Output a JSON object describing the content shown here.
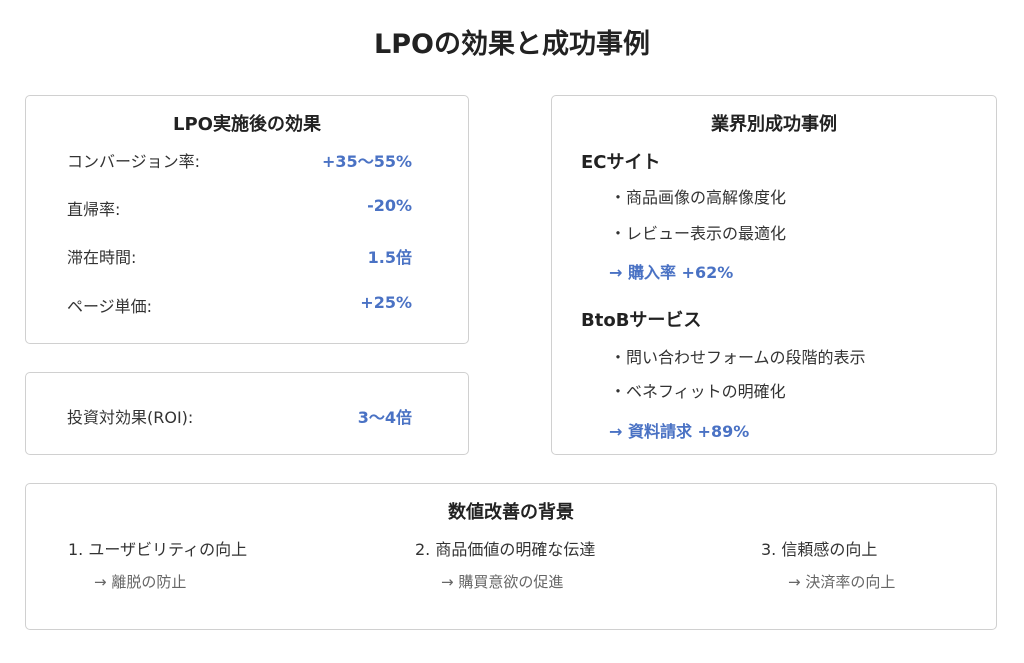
{
  "page": {
    "title": "LPOの効果と成功事例"
  },
  "effects": {
    "title": "LPO実施後の効果",
    "rows": [
      {
        "label": "コンバージョン率:",
        "value": "+35〜55%"
      },
      {
        "label": "直帰率:",
        "value": "-20%"
      },
      {
        "label": "滞在時間:",
        "value": "1.5倍"
      },
      {
        "label": "ページ単価:",
        "value": "+25%"
      }
    ]
  },
  "roi": {
    "label": "投資対効果(ROI):",
    "value": "3〜4倍"
  },
  "cases": {
    "title": "業界別成功事例",
    "ec": {
      "heading": "ECサイト",
      "bullets": [
        "・商品画像の高解像度化",
        "・レビュー表示の最適化"
      ],
      "result": "→ 購入率 +62%"
    },
    "btob": {
      "heading": "BtoBサービス",
      "bullets": [
        "・問い合わせフォームの段階的表示",
        "・ベネフィットの明確化"
      ],
      "result": "→ 資料請求 +89%"
    }
  },
  "background": {
    "title": "数値改善の背景",
    "items": [
      {
        "label": "1. ユーザビリティの向上",
        "sub": "→ 離脱の防止"
      },
      {
        "label": "2. 商品価値の明確な伝達",
        "sub": "→ 購買意欲の促進"
      },
      {
        "label": "3. 信頼感の向上",
        "sub": "→ 決済率の向上"
      }
    ]
  }
}
